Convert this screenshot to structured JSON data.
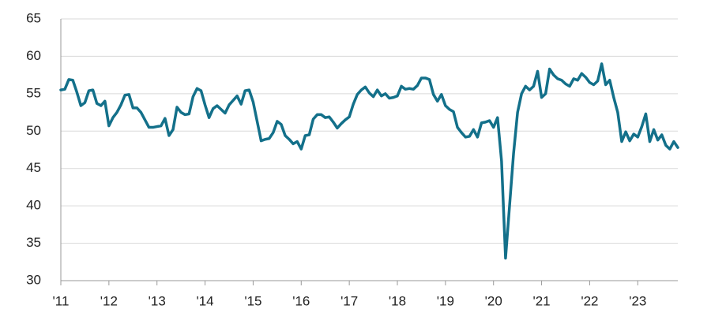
{
  "chart_data": {
    "type": "line",
    "categories": [
      "'11",
      null,
      null,
      null,
      null,
      null,
      null,
      null,
      null,
      null,
      null,
      null,
      "'12",
      null,
      null,
      null,
      null,
      null,
      null,
      null,
      null,
      null,
      null,
      null,
      "'13",
      null,
      null,
      null,
      null,
      null,
      null,
      null,
      null,
      null,
      null,
      null,
      "'14",
      null,
      null,
      null,
      null,
      null,
      null,
      null,
      null,
      null,
      null,
      null,
      "'15",
      null,
      null,
      null,
      null,
      null,
      null,
      null,
      null,
      null,
      null,
      null,
      "'16",
      null,
      null,
      null,
      null,
      null,
      null,
      null,
      null,
      null,
      null,
      null,
      "'17",
      null,
      null,
      null,
      null,
      null,
      null,
      null,
      null,
      null,
      null,
      null,
      "'18",
      null,
      null,
      null,
      null,
      null,
      null,
      null,
      null,
      null,
      null,
      null,
      "'19",
      null,
      null,
      null,
      null,
      null,
      null,
      null,
      null,
      null,
      null,
      null,
      "'20",
      null,
      null,
      null,
      null,
      null,
      null,
      null,
      null,
      null,
      null,
      null,
      "'21",
      null,
      null,
      null,
      null,
      null,
      null,
      null,
      null,
      null,
      null,
      null,
      "'22",
      null,
      null,
      null,
      null,
      null,
      null,
      null,
      null,
      null,
      null,
      null,
      "'23",
      null,
      null,
      null,
      null,
      null,
      null,
      null,
      null,
      null,
      null
    ],
    "values": [
      55.5,
      55.6,
      56.9,
      56.8,
      55.2,
      53.4,
      53.8,
      55.4,
      55.5,
      53.7,
      53.4,
      54.0,
      50.7,
      51.8,
      52.5,
      53.5,
      54.8,
      54.9,
      53.1,
      53.1,
      52.5,
      51.5,
      50.5,
      50.5,
      50.6,
      50.7,
      51.7,
      49.4,
      50.2,
      53.2,
      52.5,
      52.2,
      52.3,
      54.6,
      55.7,
      55.4,
      53.5,
      51.8,
      53.0,
      53.4,
      52.9,
      52.4,
      53.5,
      54.1,
      54.7,
      53.6,
      55.4,
      55.5,
      53.9,
      51.3,
      48.7,
      48.9,
      49.0,
      49.8,
      51.3,
      50.9,
      49.4,
      48.9,
      48.3,
      48.6,
      47.6,
      49.4,
      49.5,
      51.6,
      52.2,
      52.2,
      51.8,
      51.9,
      51.2,
      50.4,
      51.0,
      51.5,
      51.9,
      53.6,
      54.9,
      55.5,
      55.9,
      55.1,
      54.6,
      55.5,
      54.7,
      55.0,
      54.4,
      54.5,
      54.7,
      56.0,
      55.6,
      55.7,
      55.6,
      56.1,
      57.1,
      57.1,
      56.9,
      54.9,
      54.0,
      54.9,
      53.4,
      52.9,
      52.6,
      50.5,
      49.8,
      49.2,
      49.3,
      50.2,
      49.2,
      51.1,
      51.2,
      51.4,
      50.5,
      51.8,
      46.0,
      33.0,
      40.0,
      47.0,
      52.5,
      55.0,
      56.0,
      55.5,
      56.0,
      58.0,
      54.5,
      55.0,
      58.3,
      57.5,
      57.0,
      56.8,
      56.3,
      56.0,
      57.0,
      56.8,
      57.7,
      57.2,
      56.5,
      56.2,
      56.7,
      59.0,
      56.2,
      56.8,
      54.5,
      52.5,
      48.6,
      49.9,
      48.7,
      49.6,
      49.2,
      50.6,
      52.3,
      48.6,
      50.2,
      48.8,
      49.5,
      48.1,
      47.6,
      48.6,
      47.8
    ],
    "color": "#13708a",
    "ylim": [
      30,
      65
    ],
    "yticks": [
      30,
      35,
      40,
      45,
      50,
      55,
      60,
      65
    ],
    "grid": true
  }
}
